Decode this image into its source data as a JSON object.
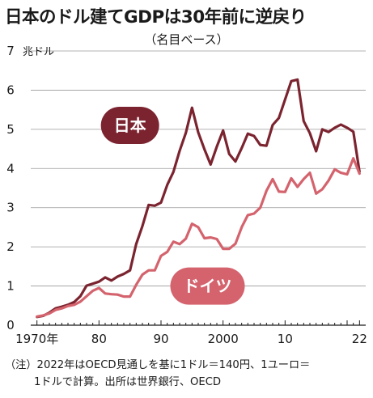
{
  "header": {
    "title": "日本のドル建てGDPは30年前に逆戻り",
    "subtitle": "（名目ベース）"
  },
  "footnote": {
    "line1": "（注）2022年はOECD見通しを基に1ドル＝140円、1ユーロ＝",
    "line2": "1ドルで計算。出所は世界銀行、OECD"
  },
  "chart_data": {
    "type": "line",
    "title": "日本のドル建てGDPは30年前に逆戻り",
    "subtitle": "（名目ベース）",
    "ylabel": "兆ドル",
    "ylim": [
      0,
      7
    ],
    "xlim": [
      1969,
      2023
    ],
    "y_ticks": [
      "0",
      "1",
      "2",
      "3",
      "4",
      "5",
      "6",
      "7"
    ],
    "x_ticks": [
      {
        "year": 1970,
        "label": "1970年"
      },
      {
        "year": 1980,
        "label": "80"
      },
      {
        "year": 1990,
        "label": "90"
      },
      {
        "year": 2000,
        "label": "2000"
      },
      {
        "year": 2010,
        "label": "10"
      },
      {
        "year": 2022,
        "label": "22"
      }
    ],
    "grid": true,
    "x": [
      1970,
      1971,
      1972,
      1973,
      1974,
      1975,
      1976,
      1977,
      1978,
      1979,
      1980,
      1981,
      1982,
      1983,
      1984,
      1985,
      1986,
      1987,
      1988,
      1989,
      1990,
      1991,
      1992,
      1993,
      1994,
      1995,
      1996,
      1997,
      1998,
      1999,
      2000,
      2001,
      2002,
      2003,
      2004,
      2005,
      2006,
      2007,
      2008,
      2009,
      2010,
      2011,
      2012,
      2013,
      2014,
      2015,
      2016,
      2017,
      2018,
      2019,
      2020,
      2021,
      2022
    ],
    "series": [
      {
        "name": "日本",
        "color": "#7b2430",
        "values": [
          0.21,
          0.24,
          0.32,
          0.43,
          0.47,
          0.52,
          0.59,
          0.74,
          1.01,
          1.06,
          1.11,
          1.22,
          1.14,
          1.24,
          1.31,
          1.4,
          2.07,
          2.53,
          3.07,
          3.05,
          3.13,
          3.58,
          3.91,
          4.45,
          4.91,
          5.55,
          4.92,
          4.49,
          4.1,
          4.56,
          4.97,
          4.37,
          4.18,
          4.52,
          4.89,
          4.83,
          4.6,
          4.58,
          5.11,
          5.29,
          5.76,
          6.23,
          6.27,
          5.21,
          4.9,
          4.44,
          5.0,
          4.93,
          5.04,
          5.12,
          5.04,
          4.94,
          3.92
        ]
      },
      {
        "name": "ドイツ",
        "color": "#d4636d",
        "values": [
          0.22,
          0.25,
          0.3,
          0.39,
          0.43,
          0.49,
          0.52,
          0.6,
          0.74,
          0.88,
          0.95,
          0.81,
          0.79,
          0.78,
          0.73,
          0.73,
          1.03,
          1.29,
          1.4,
          1.4,
          1.77,
          1.87,
          2.13,
          2.07,
          2.21,
          2.59,
          2.5,
          2.22,
          2.24,
          2.2,
          1.95,
          1.95,
          2.08,
          2.5,
          2.81,
          2.85,
          3.0,
          3.43,
          3.73,
          3.41,
          3.4,
          3.75,
          3.53,
          3.73,
          3.89,
          3.36,
          3.47,
          3.69,
          3.98,
          3.89,
          3.85,
          4.26,
          3.87
        ]
      }
    ]
  },
  "badges": [
    {
      "series": "日本",
      "text": "日本",
      "color": "#7b2430",
      "x_year": 1985,
      "y_value": 5.1
    },
    {
      "series": "ドイツ",
      "text": "ドイツ",
      "color": "#d4636d",
      "x_year": 1997.5,
      "y_value": 1.0
    }
  ]
}
